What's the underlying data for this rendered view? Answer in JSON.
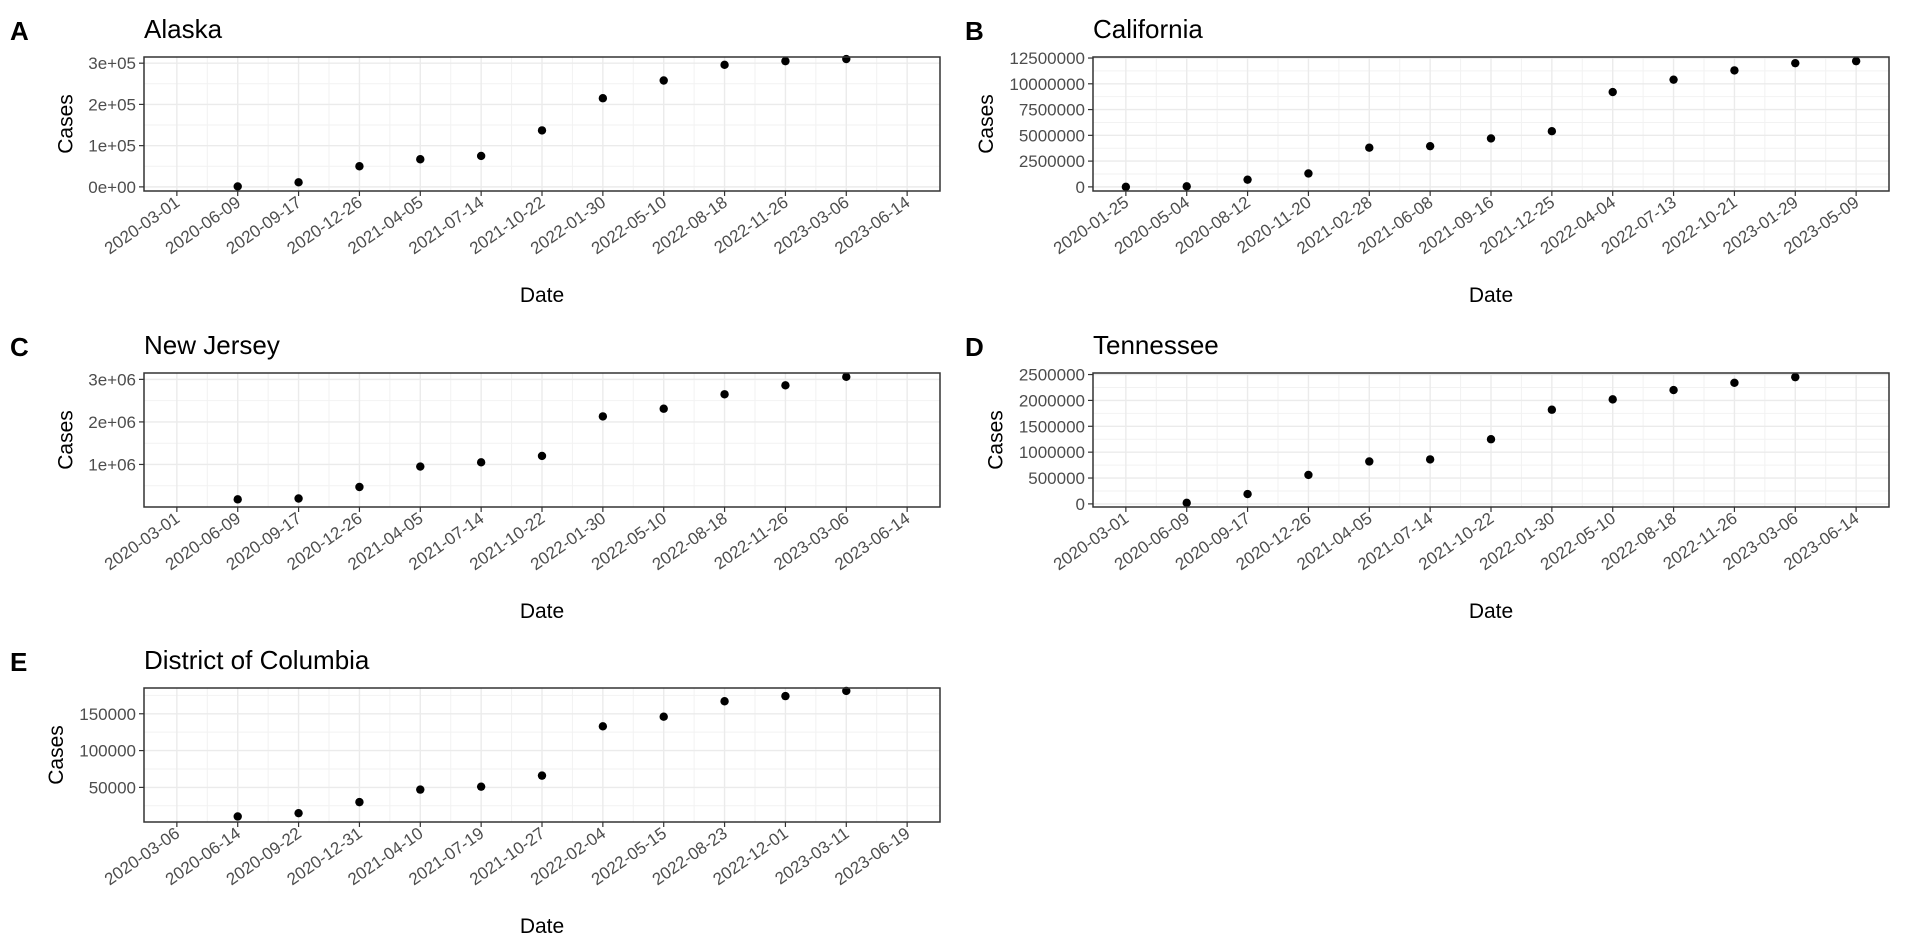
{
  "chart_data": [
    {
      "type": "scatter",
      "panel": "A",
      "title": "Alaska",
      "xlabel": "Date",
      "ylabel": "Cases",
      "x_ticks": [
        "2020-03-01",
        "2020-06-09",
        "2020-09-17",
        "2020-12-26",
        "2021-04-05",
        "2021-07-14",
        "2021-10-22",
        "2022-01-30",
        "2022-05-10",
        "2022-08-18",
        "2022-11-26",
        "2023-03-06",
        "2023-06-14"
      ],
      "y_ticks": [
        0,
        100000,
        200000,
        300000
      ],
      "y_tick_labels": [
        "0e+00",
        "1e+05",
        "2e+05",
        "3e+05"
      ],
      "ylim": [
        -10000,
        315000
      ],
      "x": [
        "2020-06-09",
        "2020-09-17",
        "2020-12-26",
        "2021-04-05",
        "2021-07-14",
        "2021-10-22",
        "2022-01-30",
        "2022-05-10",
        "2022-08-18",
        "2022-11-26",
        "2023-03-06"
      ],
      "y": [
        1000,
        11000,
        50000,
        67000,
        75000,
        137000,
        215000,
        258000,
        296000,
        305000,
        310000
      ],
      "grid": true
    },
    {
      "type": "scatter",
      "panel": "B",
      "title": "California",
      "xlabel": "Date",
      "ylabel": "Cases",
      "x_ticks": [
        "2020-01-25",
        "2020-05-04",
        "2020-08-12",
        "2020-11-20",
        "2021-02-28",
        "2021-06-08",
        "2021-09-16",
        "2021-12-25",
        "2022-04-04",
        "2022-07-13",
        "2022-10-21",
        "2023-01-29",
        "2023-05-09"
      ],
      "y_ticks": [
        0,
        2500000,
        5000000,
        7500000,
        10000000,
        12500000
      ],
      "y_tick_labels": [
        "0",
        "2500000",
        "5000000",
        "7500000",
        "10000000",
        "12500000"
      ],
      "ylim": [
        -400000,
        12600000
      ],
      "x": [
        "2020-01-25",
        "2020-05-04",
        "2020-08-12",
        "2020-11-20",
        "2021-02-28",
        "2021-06-08",
        "2021-09-16",
        "2021-12-25",
        "2022-04-04",
        "2022-07-13",
        "2022-10-21",
        "2023-01-29",
        "2023-05-09"
      ],
      "y": [
        0,
        50000,
        700000,
        1300000,
        3800000,
        3950000,
        4700000,
        5400000,
        9200000,
        10400000,
        11300000,
        12000000,
        12200000
      ],
      "grid": true
    },
    {
      "type": "scatter",
      "panel": "C",
      "title": "New Jersey",
      "xlabel": "Date",
      "ylabel": "Cases",
      "x_ticks": [
        "2020-03-01",
        "2020-06-09",
        "2020-09-17",
        "2020-12-26",
        "2021-04-05",
        "2021-07-14",
        "2021-10-22",
        "2022-01-30",
        "2022-05-10",
        "2022-08-18",
        "2022-11-26",
        "2023-03-06",
        "2023-06-14"
      ],
      "y_ticks": [
        1000000,
        2000000,
        3000000
      ],
      "y_tick_labels": [
        "1e+06",
        "2e+06",
        "3e+06"
      ],
      "ylim": [
        0,
        3150000
      ],
      "x": [
        "2020-06-09",
        "2020-09-17",
        "2020-12-26",
        "2021-04-05",
        "2021-07-14",
        "2021-10-22",
        "2022-01-30",
        "2022-05-10",
        "2022-08-18",
        "2022-11-26",
        "2023-03-06"
      ],
      "y": [
        180000,
        200000,
        470000,
        950000,
        1050000,
        1200000,
        2130000,
        2310000,
        2650000,
        2860000,
        3060000
      ],
      "grid": true
    },
    {
      "type": "scatter",
      "panel": "D",
      "title": "Tennessee",
      "xlabel": "Date",
      "ylabel": "Cases",
      "x_ticks": [
        "2020-03-01",
        "2020-06-09",
        "2020-09-17",
        "2020-12-26",
        "2021-04-05",
        "2021-07-14",
        "2021-10-22",
        "2022-01-30",
        "2022-05-10",
        "2022-08-18",
        "2022-11-26",
        "2023-03-06",
        "2023-06-14"
      ],
      "y_ticks": [
        0,
        500000,
        1000000,
        1500000,
        2000000,
        2500000
      ],
      "y_tick_labels": [
        "0",
        "500000",
        "1000000",
        "1500000",
        "2000000",
        "2500000"
      ],
      "ylim": [
        -60000,
        2530000
      ],
      "x": [
        "2020-06-09",
        "2020-09-17",
        "2020-12-26",
        "2021-04-05",
        "2021-07-14",
        "2021-10-22",
        "2022-01-30",
        "2022-05-10",
        "2022-08-18",
        "2022-11-26",
        "2023-03-06"
      ],
      "y": [
        20000,
        190000,
        560000,
        820000,
        860000,
        1250000,
        1820000,
        2020000,
        2200000,
        2340000,
        2450000
      ],
      "grid": true
    },
    {
      "type": "scatter",
      "panel": "E",
      "title": "District of Columbia",
      "xlabel": "Date",
      "ylabel": "Cases",
      "x_ticks": [
        "2020-03-06",
        "2020-06-14",
        "2020-09-22",
        "2020-12-31",
        "2021-04-10",
        "2021-07-19",
        "2021-10-27",
        "2022-02-04",
        "2022-05-15",
        "2022-08-23",
        "2022-12-01",
        "2023-03-11",
        "2023-06-19"
      ],
      "y_ticks": [
        50000,
        100000,
        150000
      ],
      "y_tick_labels": [
        "50000",
        "100000",
        "150000"
      ],
      "ylim": [
        3000,
        185000
      ],
      "x": [
        "2020-06-14",
        "2020-09-22",
        "2020-12-31",
        "2021-04-10",
        "2021-07-19",
        "2021-10-27",
        "2022-02-04",
        "2022-05-15",
        "2022-08-23",
        "2022-12-01",
        "2023-03-11"
      ],
      "y": [
        10500,
        15000,
        30000,
        47000,
        51000,
        66000,
        133000,
        146000,
        167000,
        174000,
        181000
      ],
      "grid": true
    }
  ]
}
